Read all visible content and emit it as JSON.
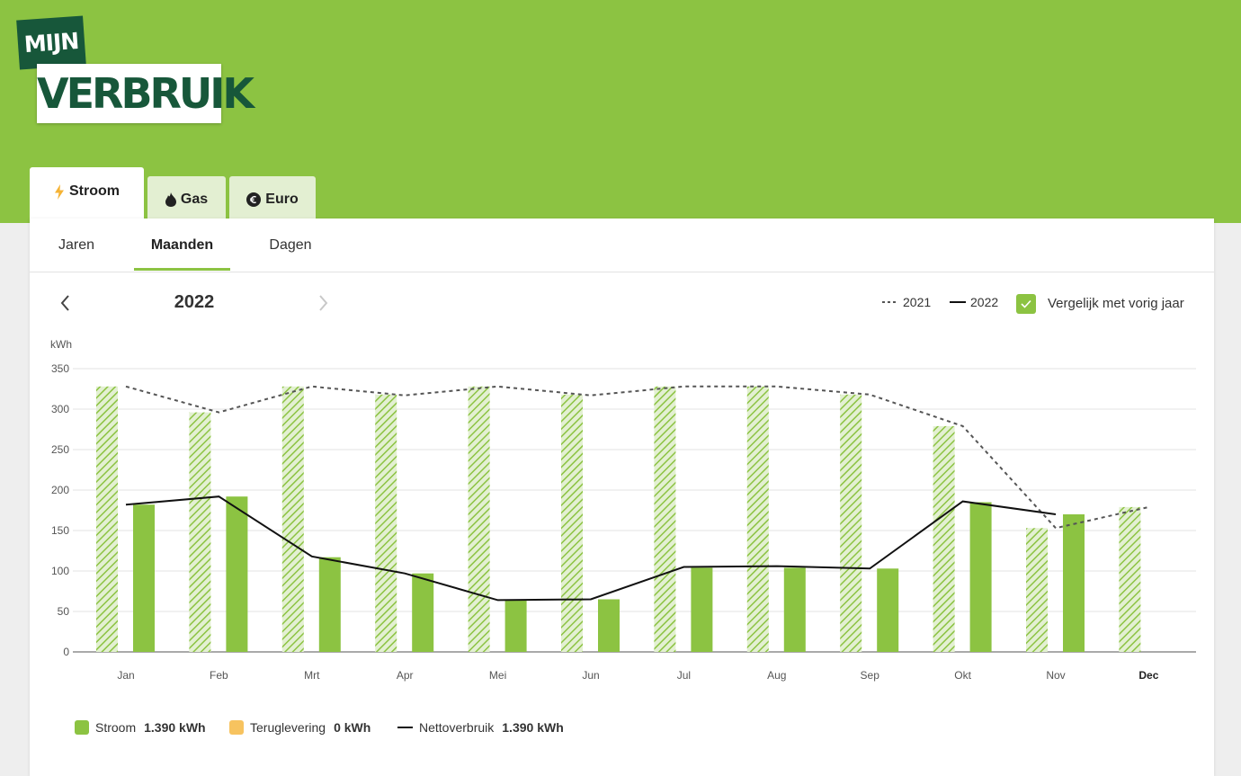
{
  "logo": {
    "top": "MIJN",
    "bottom": "VERBRUIK"
  },
  "tabs": [
    {
      "label": "Stroom",
      "icon": "lightning-icon"
    },
    {
      "label": "Gas",
      "icon": "flame-icon"
    },
    {
      "label": "Euro",
      "icon": "euro-icon"
    }
  ],
  "subtabs": [
    "Jaren",
    "Maanden",
    "Dagen"
  ],
  "active_subtab": "Maanden",
  "year": "2022",
  "legend_top": {
    "prev": "2021",
    "curr": "2022",
    "compare": "Vergelijk met vorig jaar"
  },
  "legend_bottom": [
    {
      "label": "Stroom",
      "value": "1.390 kWh",
      "color": "#8cc342"
    },
    {
      "label": "Teruglevering",
      "value": "0 kWh",
      "color": "#f7c35f"
    },
    {
      "label": "Nettoverbruik",
      "value": "1.390 kWh",
      "color": "#111111"
    }
  ],
  "colors": {
    "brand_green": "#8cc342",
    "dark_green": "#17573a",
    "tab_inactive": "#e3efd2"
  },
  "chart_data": {
    "type": "bar",
    "ylabel": "kWh",
    "ylim": [
      0,
      350
    ],
    "yticks": [
      0,
      50,
      100,
      150,
      200,
      250,
      300,
      350
    ],
    "categories": [
      "Jan",
      "Feb",
      "Mrt",
      "Apr",
      "Mei",
      "Jun",
      "Jul",
      "Aug",
      "Sep",
      "Okt",
      "Nov",
      "Dec"
    ],
    "series": [
      {
        "name": "2021",
        "style": "hatched-bar",
        "values": [
          328,
          296,
          328,
          318,
          328,
          318,
          328,
          328,
          318,
          279,
          153,
          179
        ]
      },
      {
        "name": "Stroom",
        "style": "bar",
        "values": [
          182,
          192,
          117,
          97,
          65,
          65,
          104,
          104,
          103,
          185,
          170,
          null
        ]
      },
      {
        "name": "2021",
        "style": "dashed-line",
        "values": [
          328,
          296,
          328,
          317,
          328,
          317,
          328,
          328,
          318,
          279,
          153,
          179
        ]
      },
      {
        "name": "2022",
        "style": "line",
        "values": [
          182,
          192,
          118,
          97,
          64,
          65,
          105,
          106,
          103,
          186,
          170,
          null
        ]
      }
    ]
  }
}
